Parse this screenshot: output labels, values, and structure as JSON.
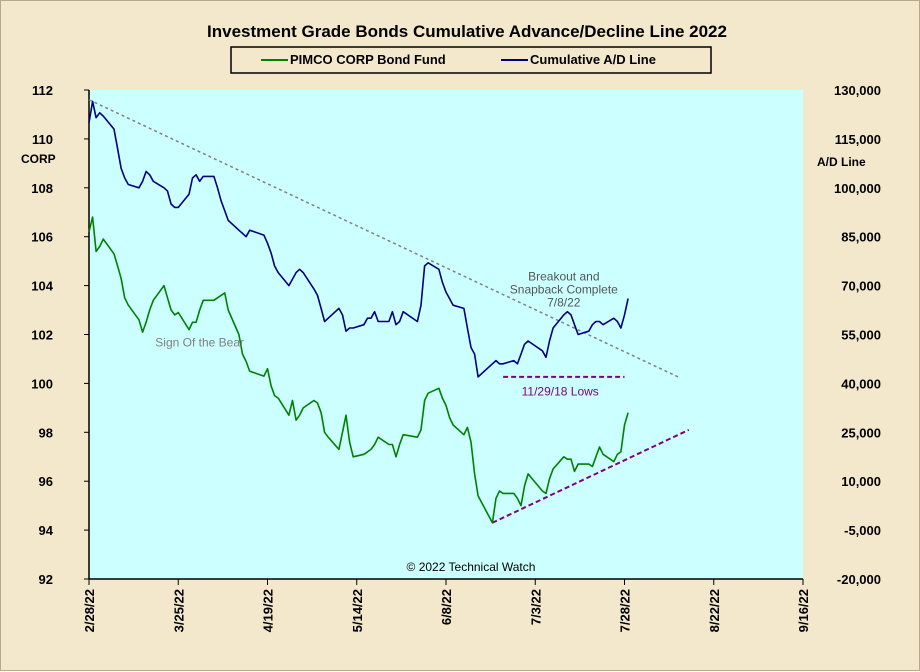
{
  "chart_data": {
    "type": "line",
    "title": "Investment Grade Bonds Cumulative Advance/Decline Line 2022",
    "credit": "© 2022 Technical Watch",
    "x_ticks": [
      "2/28/22",
      "3/25/22",
      "4/19/22",
      "5/14/22",
      "6/8/22",
      "7/3/22",
      "7/28/22",
      "8/22/22",
      "9/16/22"
    ],
    "xlim": [
      "2022-02-28",
      "2022-09-16"
    ],
    "left_axis": {
      "label": "CORP",
      "ylim": [
        92,
        112
      ],
      "ticks": [
        "92",
        "94",
        "96",
        "98",
        "100",
        "102",
        "104",
        "106",
        "108",
        "110",
        "112"
      ]
    },
    "right_axis": {
      "label": "A/D Line",
      "ylim": [
        -20000,
        130000
      ],
      "ticks": [
        "-20,000",
        "-5,000",
        "10,000",
        "25,000",
        "40,000",
        "55,000",
        "70,000",
        "85,000",
        "100,000",
        "115,000",
        "130,000"
      ]
    },
    "grid": false,
    "legend_position": "top-center",
    "colors": {
      "frame": "#f3e8cc",
      "plot_bg": "#ccffff",
      "pimco": "#008000",
      "ad_line": "#000080",
      "trendline": "#808080",
      "support": "#800080"
    },
    "series": [
      {
        "name": "PIMCO CORP Bond Fund",
        "axis": "left",
        "points": [
          [
            "2022-02-28",
            106.2
          ],
          [
            "2022-03-01",
            106.8
          ],
          [
            "2022-03-02",
            105.4
          ],
          [
            "2022-03-03",
            105.6
          ],
          [
            "2022-03-04",
            105.9
          ],
          [
            "2022-03-07",
            105.3
          ],
          [
            "2022-03-08",
            104.8
          ],
          [
            "2022-03-09",
            104.3
          ],
          [
            "2022-03-10",
            103.5
          ],
          [
            "2022-03-11",
            103.2
          ],
          [
            "2022-03-14",
            102.6
          ],
          [
            "2022-03-15",
            102.1
          ],
          [
            "2022-03-16",
            102.5
          ],
          [
            "2022-03-17",
            103.0
          ],
          [
            "2022-03-18",
            103.4
          ],
          [
            "2022-03-21",
            104.0
          ],
          [
            "2022-03-22",
            103.5
          ],
          [
            "2022-03-23",
            103.0
          ],
          [
            "2022-03-24",
            102.8
          ],
          [
            "2022-03-25",
            102.9
          ],
          [
            "2022-03-28",
            102.2
          ],
          [
            "2022-03-29",
            102.5
          ],
          [
            "2022-03-30",
            102.5
          ],
          [
            "2022-03-31",
            103.0
          ],
          [
            "2022-04-01",
            103.4
          ],
          [
            "2022-04-04",
            103.4
          ],
          [
            "2022-04-05",
            103.5
          ],
          [
            "2022-04-06",
            103.6
          ],
          [
            "2022-04-07",
            103.7
          ],
          [
            "2022-04-08",
            103.0
          ],
          [
            "2022-04-11",
            102.0
          ],
          [
            "2022-04-12",
            101.2
          ],
          [
            "2022-04-13",
            100.9
          ],
          [
            "2022-04-14",
            100.5
          ],
          [
            "2022-04-18",
            100.3
          ],
          [
            "2022-04-19",
            100.6
          ],
          [
            "2022-04-20",
            99.9
          ],
          [
            "2022-04-21",
            99.5
          ],
          [
            "2022-04-22",
            99.4
          ],
          [
            "2022-04-25",
            98.7
          ],
          [
            "2022-04-26",
            99.3
          ],
          [
            "2022-04-27",
            98.5
          ],
          [
            "2022-04-28",
            98.7
          ],
          [
            "2022-04-29",
            99.0
          ],
          [
            "2022-05-02",
            99.3
          ],
          [
            "2022-05-03",
            99.2
          ],
          [
            "2022-05-04",
            98.8
          ],
          [
            "2022-05-05",
            98.0
          ],
          [
            "2022-05-06",
            97.8
          ],
          [
            "2022-05-09",
            97.3
          ],
          [
            "2022-05-10",
            98.0
          ],
          [
            "2022-05-11",
            98.7
          ],
          [
            "2022-05-12",
            97.6
          ],
          [
            "2022-05-13",
            97.0
          ],
          [
            "2022-05-16",
            97.1
          ],
          [
            "2022-05-17",
            97.2
          ],
          [
            "2022-05-18",
            97.3
          ],
          [
            "2022-05-19",
            97.5
          ],
          [
            "2022-05-20",
            97.8
          ],
          [
            "2022-05-23",
            97.5
          ],
          [
            "2022-05-24",
            97.5
          ],
          [
            "2022-05-25",
            97.0
          ],
          [
            "2022-05-26",
            97.5
          ],
          [
            "2022-05-27",
            97.9
          ],
          [
            "2022-05-31",
            97.8
          ],
          [
            "2022-06-01",
            98.1
          ],
          [
            "2022-06-02",
            99.3
          ],
          [
            "2022-06-03",
            99.6
          ],
          [
            "2022-06-06",
            99.8
          ],
          [
            "2022-06-07",
            99.4
          ],
          [
            "2022-06-08",
            99.1
          ],
          [
            "2022-06-09",
            98.6
          ],
          [
            "2022-06-10",
            98.3
          ],
          [
            "2022-06-13",
            97.9
          ],
          [
            "2022-06-14",
            98.2
          ],
          [
            "2022-06-15",
            97.6
          ],
          [
            "2022-06-16",
            96.3
          ],
          [
            "2022-06-17",
            95.4
          ],
          [
            "2022-06-21",
            94.3
          ],
          [
            "2022-06-22",
            95.3
          ],
          [
            "2022-06-23",
            95.6
          ],
          [
            "2022-06-24",
            95.5
          ],
          [
            "2022-06-27",
            95.5
          ],
          [
            "2022-06-28",
            95.3
          ],
          [
            "2022-06-29",
            95.0
          ],
          [
            "2022-06-30",
            95.8
          ],
          [
            "2022-07-01",
            96.3
          ],
          [
            "2022-07-05",
            95.6
          ],
          [
            "2022-07-06",
            95.5
          ],
          [
            "2022-07-07",
            96.1
          ],
          [
            "2022-07-08",
            96.5
          ],
          [
            "2022-07-11",
            97.0
          ],
          [
            "2022-07-12",
            96.9
          ],
          [
            "2022-07-13",
            96.9
          ],
          [
            "2022-07-14",
            96.4
          ],
          [
            "2022-07-15",
            96.7
          ],
          [
            "2022-07-18",
            96.7
          ],
          [
            "2022-07-19",
            96.6
          ],
          [
            "2022-07-20",
            97.0
          ],
          [
            "2022-07-21",
            97.4
          ],
          [
            "2022-07-22",
            97.1
          ],
          [
            "2022-07-25",
            96.8
          ],
          [
            "2022-07-26",
            97.1
          ],
          [
            "2022-07-27",
            97.2
          ],
          [
            "2022-07-28",
            98.3
          ],
          [
            "2022-07-29",
            98.8
          ]
        ]
      },
      {
        "name": "Cumulative A/D Line",
        "axis": "right",
        "points": [
          [
            "2022-02-28",
            120000
          ],
          [
            "2022-03-01",
            126500
          ],
          [
            "2022-03-02",
            121500
          ],
          [
            "2022-03-03",
            123000
          ],
          [
            "2022-03-04",
            122000
          ],
          [
            "2022-03-07",
            118000
          ],
          [
            "2022-03-08",
            112000
          ],
          [
            "2022-03-09",
            106000
          ],
          [
            "2022-03-10",
            103000
          ],
          [
            "2022-03-11",
            101000
          ],
          [
            "2022-03-14",
            100000
          ],
          [
            "2022-03-15",
            102000
          ],
          [
            "2022-03-16",
            105000
          ],
          [
            "2022-03-17",
            104000
          ],
          [
            "2022-03-18",
            102000
          ],
          [
            "2022-03-21",
            100000
          ],
          [
            "2022-03-22",
            99000
          ],
          [
            "2022-03-23",
            95000
          ],
          [
            "2022-03-24",
            94000
          ],
          [
            "2022-03-25",
            94000
          ],
          [
            "2022-03-28",
            98000
          ],
          [
            "2022-03-29",
            103000
          ],
          [
            "2022-03-30",
            104000
          ],
          [
            "2022-03-31",
            102000
          ],
          [
            "2022-04-01",
            103500
          ],
          [
            "2022-04-04",
            103500
          ],
          [
            "2022-04-05",
            100000
          ],
          [
            "2022-04-06",
            96000
          ],
          [
            "2022-04-07",
            93000
          ],
          [
            "2022-04-08",
            90000
          ],
          [
            "2022-04-11",
            87000
          ],
          [
            "2022-04-12",
            86000
          ],
          [
            "2022-04-13",
            85000
          ],
          [
            "2022-04-14",
            87000
          ],
          [
            "2022-04-18",
            85500
          ],
          [
            "2022-04-19",
            83000
          ],
          [
            "2022-04-20",
            80000
          ],
          [
            "2022-04-21",
            76000
          ],
          [
            "2022-04-22",
            74000
          ],
          [
            "2022-04-25",
            70000
          ],
          [
            "2022-04-26",
            72000
          ],
          [
            "2022-04-27",
            74000
          ],
          [
            "2022-04-28",
            75000
          ],
          [
            "2022-04-29",
            74000
          ],
          [
            "2022-05-02",
            69000
          ],
          [
            "2022-05-03",
            67000
          ],
          [
            "2022-05-04",
            63000
          ],
          [
            "2022-05-05",
            59000
          ],
          [
            "2022-05-06",
            60000
          ],
          [
            "2022-05-09",
            63000
          ],
          [
            "2022-05-10",
            61000
          ],
          [
            "2022-05-11",
            56000
          ],
          [
            "2022-05-12",
            57000
          ],
          [
            "2022-05-13",
            57000
          ],
          [
            "2022-05-16",
            58000
          ],
          [
            "2022-05-17",
            60000
          ],
          [
            "2022-05-18",
            60000
          ],
          [
            "2022-05-19",
            62000
          ],
          [
            "2022-05-20",
            59000
          ],
          [
            "2022-05-23",
            59000
          ],
          [
            "2022-05-24",
            62000
          ],
          [
            "2022-05-25",
            58000
          ],
          [
            "2022-05-26",
            59000
          ],
          [
            "2022-05-27",
            62000
          ],
          [
            "2022-05-31",
            59000
          ],
          [
            "2022-06-01",
            64000
          ],
          [
            "2022-06-02",
            76000
          ],
          [
            "2022-06-03",
            77000
          ],
          [
            "2022-06-06",
            75000
          ],
          [
            "2022-06-07",
            71000
          ],
          [
            "2022-06-08",
            68000
          ],
          [
            "2022-06-09",
            66000
          ],
          [
            "2022-06-10",
            64000
          ],
          [
            "2022-06-13",
            63000
          ],
          [
            "2022-06-14",
            57000
          ],
          [
            "2022-06-15",
            51000
          ],
          [
            "2022-06-16",
            49000
          ],
          [
            "2022-06-17",
            42000
          ],
          [
            "2022-06-21",
            46000
          ],
          [
            "2022-06-22",
            47000
          ],
          [
            "2022-06-23",
            46000
          ],
          [
            "2022-06-24",
            46000
          ],
          [
            "2022-06-27",
            47000
          ],
          [
            "2022-06-28",
            46000
          ],
          [
            "2022-06-29",
            49000
          ],
          [
            "2022-06-30",
            52000
          ],
          [
            "2022-07-01",
            53000
          ],
          [
            "2022-07-05",
            50000
          ],
          [
            "2022-07-06",
            48000
          ],
          [
            "2022-07-07",
            53000
          ],
          [
            "2022-07-08",
            57000
          ],
          [
            "2022-07-11",
            61000
          ],
          [
            "2022-07-12",
            62000
          ],
          [
            "2022-07-13",
            61000
          ],
          [
            "2022-07-14",
            58000
          ],
          [
            "2022-07-15",
            55000
          ],
          [
            "2022-07-18",
            56000
          ],
          [
            "2022-07-19",
            58000
          ],
          [
            "2022-07-20",
            59000
          ],
          [
            "2022-07-21",
            59000
          ],
          [
            "2022-07-22",
            58000
          ],
          [
            "2022-07-25",
            60000
          ],
          [
            "2022-07-26",
            59000
          ],
          [
            "2022-07-27",
            57000
          ],
          [
            "2022-07-28",
            61000
          ],
          [
            "2022-07-29",
            66000
          ]
        ]
      }
    ],
    "lines": {
      "ad_trendline": {
        "start": [
          "2022-02-28",
          127000
        ],
        "end": [
          "2022-08-12",
          42000
        ]
      },
      "lows_line": {
        "start": [
          "2022-06-24",
          42000
        ],
        "end": [
          "2022-07-28",
          42000
        ]
      },
      "pimco_support": {
        "start": [
          "2022-06-21",
          94.3
        ],
        "end": [
          "2022-08-15",
          98.1
        ]
      }
    },
    "annotations": [
      {
        "id": "breakout",
        "lines": [
          "Breakout and",
          "Snapback Complete",
          "7/8/22"
        ],
        "x": "2022-07-11",
        "y": 104.2,
        "axis": "left",
        "color": "#555555"
      },
      {
        "id": "lows",
        "lines": [
          "11/29/18  Lows"
        ],
        "x": "2022-07-10",
        "y": 99.5,
        "axis": "left",
        "color": "#800080"
      },
      {
        "id": "bear",
        "lines": [
          "Sign Of the Bear"
        ],
        "x": "2022-03-31",
        "y": 101.5,
        "axis": "left",
        "color": "#808080"
      }
    ]
  }
}
